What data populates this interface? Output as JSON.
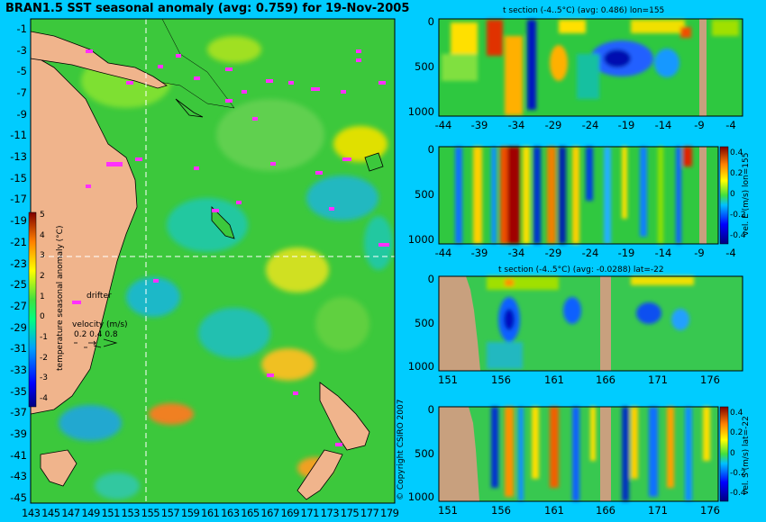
{
  "title": "BRAN1.5 SST seasonal anomaly (avg: 0.759) for 19-Nov-2005",
  "map": {
    "lat_labels": [
      "-1",
      "-3",
      "-5",
      "-7",
      "-9",
      "-11",
      "-13",
      "-15",
      "-17",
      "-19",
      "-21",
      "-23",
      "-25",
      "-27",
      "-29",
      "-31",
      "-33",
      "-35",
      "-37",
      "-39",
      "-41",
      "-43",
      "-45"
    ],
    "lon_labels": [
      "143",
      "145",
      "147",
      "149",
      "151",
      "153",
      "155",
      "157",
      "159",
      "161",
      "163",
      "165",
      "167",
      "169",
      "171",
      "173",
      "175",
      "177",
      "179"
    ],
    "colorbar_label": "temperature seasonal anomaly (°C)",
    "colorbar_ticks": [
      "5",
      "4",
      "3",
      "2",
      "1",
      "0",
      "-1",
      "-2",
      "-3",
      "-4"
    ],
    "drifter_label": "drifter",
    "velocity_label": "velocity (m/s)",
    "velocity_ticks": "0.2 0.4 0.8",
    "copyright": "© Copyright CSIRO 2007"
  },
  "panels": [
    {
      "title": "t section (-4..5°C) (avg: 0.486) lon=155",
      "yticks": [
        "0",
        "500",
        "1000"
      ],
      "xticks": [
        "-44",
        "-39",
        "-34",
        "-29",
        "-24",
        "-19",
        "-14",
        "-9",
        "-4"
      ]
    },
    {
      "title": "",
      "yticks": [
        "0",
        "500",
        "1000"
      ],
      "xticks": [
        "-44",
        "-39",
        "-34",
        "-29",
        "-24",
        "-19",
        "-14",
        "-9",
        "-4"
      ],
      "cbar_label": "vel. E (m/s) lon=155",
      "cbar_ticks": [
        "0.4",
        "0.2",
        "0",
        "-0.2",
        "-0.4"
      ]
    },
    {
      "title": "t section (-4..5°C) (avg: -0.0288) lat=-22",
      "yticks": [
        "0",
        "500",
        "1000"
      ],
      "xticks": [
        "151",
        "156",
        "161",
        "166",
        "171",
        "176"
      ]
    },
    {
      "title": "",
      "yticks": [
        "0",
        "500",
        "1000"
      ],
      "xticks": [
        "151",
        "156",
        "161",
        "166",
        "171",
        "176"
      ],
      "cbar_label": "vel. S (m/s) lat=-22",
      "cbar_ticks": [
        "0.4",
        "0.2",
        "0",
        "-0.2",
        "-0.4"
      ]
    }
  ],
  "chart_data": [
    {
      "type": "heatmap",
      "title": "BRAN1.5 SST seasonal anomaly (avg: 0.759) for 19-Nov-2005",
      "xlabel": "",
      "ylabel": "",
      "xlim": [
        143,
        179
      ],
      "ylim": [
        -45,
        -1
      ],
      "colorbar": {
        "label": "temperature seasonal anomaly (°C)",
        "range": [
          -4,
          5
        ]
      },
      "avg": 0.759
    },
    {
      "type": "heatmap",
      "title": "t section (-4..5°C) (avg: 0.486) lon=155",
      "xlim": [
        -44,
        -4
      ],
      "ylim": [
        1000,
        0
      ],
      "avg": 0.486
    },
    {
      "type": "heatmap",
      "xlim": [
        -44,
        -4
      ],
      "ylim": [
        1000,
        0
      ],
      "colorbar": {
        "label": "vel. E (m/s) lon=155",
        "range": [
          -0.4,
          0.4
        ]
      }
    },
    {
      "type": "heatmap",
      "title": "t section (-4..5°C) (avg: -0.0288) lat=-22",
      "xlim": [
        151,
        179
      ],
      "ylim": [
        1000,
        0
      ],
      "avg": -0.0288
    },
    {
      "type": "heatmap",
      "xlim": [
        151,
        179
      ],
      "ylim": [
        1000,
        0
      ],
      "colorbar": {
        "label": "vel. S (m/s) lat=-22",
        "range": [
          -0.4,
          0.4
        ]
      }
    }
  ]
}
